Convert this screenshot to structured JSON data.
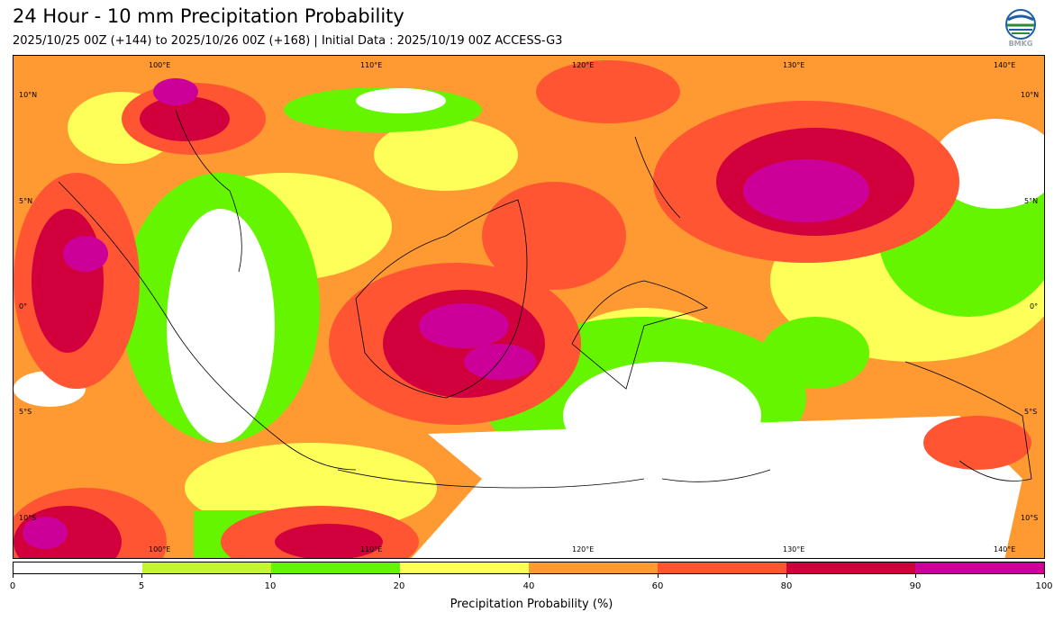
{
  "header": {
    "title": "24 Hour - 10 mm Precipitation Probability",
    "subtitle": "2025/10/25 00Z (+144) to 2025/10/26 00Z (+168) | Initial Data : 2025/10/19 00Z ACCESS-G3",
    "logo_text": "BMKG"
  },
  "map": {
    "longitude_labels": [
      "100°E",
      "110°E",
      "120°E",
      "130°E",
      "140°E"
    ],
    "latitude_labels": [
      "10°N",
      "5°N",
      "0°",
      "5°S",
      "10°S"
    ]
  },
  "colorbar": {
    "xlabel": "Precipitation Probability (%)",
    "ticks": [
      "0",
      "5",
      "10",
      "20",
      "40",
      "60",
      "80",
      "90",
      "100"
    ],
    "colors": [
      "#ffffff",
      "#c3f535",
      "#66f500",
      "#ffff59",
      "#ff9a33",
      "#ff5533",
      "#d1003d",
      "#cc0099"
    ]
  }
}
